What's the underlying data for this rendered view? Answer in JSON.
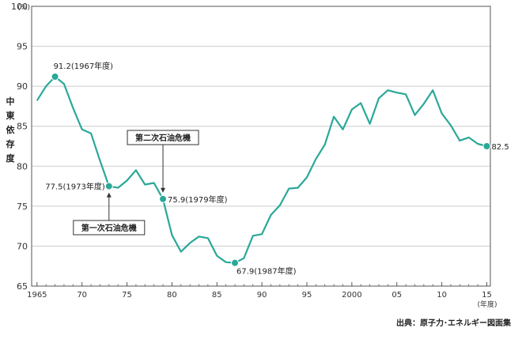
{
  "chart_data": {
    "type": "line",
    "ylabel": "中東依存度",
    "y_unit": "(%)",
    "x_unit": "(年度)",
    "ylim": [
      65,
      100
    ],
    "yticks": [
      65,
      70,
      75,
      80,
      85,
      90,
      95,
      100
    ],
    "xlim": [
      1964.4,
      2015.4
    ],
    "xticks": [
      {
        "value": 1965,
        "label": "1965"
      },
      {
        "value": 1970,
        "label": "70"
      },
      {
        "value": 1975,
        "label": "75"
      },
      {
        "value": 1980,
        "label": "80"
      },
      {
        "value": 1985,
        "label": "85"
      },
      {
        "value": 1990,
        "label": "90"
      },
      {
        "value": 1995,
        "label": "95"
      },
      {
        "value": 2000,
        "label": "2000"
      },
      {
        "value": 2005,
        "label": "05"
      },
      {
        "value": 2010,
        "label": "10"
      },
      {
        "value": 2015,
        "label": "15"
      }
    ],
    "grid": true,
    "series": [
      {
        "color": "#2aa898",
        "x": [
          1965,
          1966,
          1967,
          1968,
          1969,
          1970,
          1971,
          1972,
          1973,
          1974,
          1975,
          1976,
          1977,
          1978,
          1979,
          1980,
          1981,
          1982,
          1983,
          1984,
          1985,
          1986,
          1987,
          1988,
          1989,
          1990,
          1991,
          1992,
          1993,
          1994,
          1995,
          1996,
          1997,
          1998,
          1999,
          2000,
          2001,
          2002,
          2003,
          2004,
          2005,
          2006,
          2007,
          2008,
          2009,
          2010,
          2011,
          2012,
          2013,
          2014,
          2015
        ],
        "values": [
          88.2,
          90.0,
          91.2,
          90.3,
          87.3,
          84.6,
          84.1,
          80.7,
          77.5,
          77.3,
          78.2,
          79.5,
          77.7,
          77.9,
          75.9,
          71.4,
          69.3,
          70.4,
          71.2,
          71.0,
          68.8,
          68.0,
          67.9,
          68.5,
          71.3,
          71.5,
          73.9,
          75.1,
          77.2,
          77.3,
          78.6,
          80.9,
          82.7,
          86.2,
          84.6,
          87.1,
          87.9,
          85.3,
          88.5,
          89.5,
          89.2,
          89.0,
          86.4,
          87.8,
          89.5,
          86.6,
          85.1,
          83.2,
          83.6,
          82.8,
          82.5
        ]
      }
    ],
    "highlights": [
      {
        "x": 1967,
        "y": 91.2,
        "label": "91.2(1967年度)"
      },
      {
        "x": 1973,
        "y": 77.5,
        "label": "77.5(1973年度)"
      },
      {
        "x": 1979,
        "y": 75.9,
        "label": "75.9(1979年度)"
      },
      {
        "x": 1987,
        "y": 67.9,
        "label": "67.9(1987年度)"
      },
      {
        "x": 2015,
        "y": 82.5,
        "label": "82.5"
      }
    ],
    "annotations": [
      {
        "text": "第一次石油危機",
        "x": 1973
      },
      {
        "text": "第二次石油危機",
        "x": 1979
      }
    ]
  },
  "source": "出典：原子力･エネルギー図面集",
  "colors": {
    "line": "#2aa898",
    "grid": "#cccccc",
    "axis": "#555555"
  }
}
